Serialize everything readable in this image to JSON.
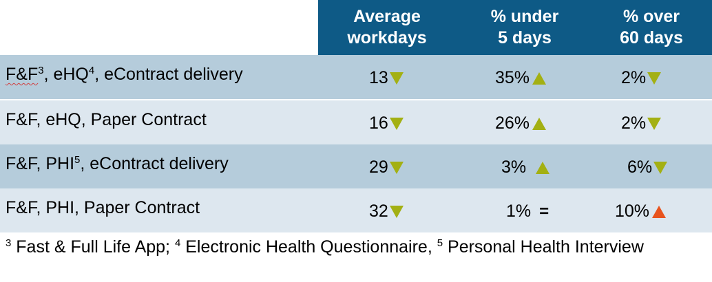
{
  "colors": {
    "header_bg": "#0e5a86",
    "row_dark": "#b5ccdb",
    "row_light": "#dde7ef",
    "down_arrow": "#a3b013",
    "up_arrow_good": "#a3b013",
    "up_arrow_bad": "#e8541e"
  },
  "headers": {
    "avg_line1": "Average",
    "avg_line2": "workdays",
    "under_line1": "% under",
    "under_line2": "5 days",
    "over_line1": "% over",
    "over_line2": "60 days"
  },
  "rows": [
    {
      "label_a": "F&F",
      "sup_a": "3",
      "label_b": ", eHQ",
      "sup_b": "4",
      "label_c": ", eContract delivery",
      "avg": "13",
      "avg_trend": "down-icon",
      "under": "35%",
      "under_trend": "up-icon",
      "over": "2%",
      "over_trend": "down-icon"
    },
    {
      "label_a": "F&F, eHQ, Paper Contract",
      "avg": "16",
      "avg_trend": "down-icon",
      "under": "26%",
      "under_trend": "up-icon",
      "over": "2%",
      "over_trend": "down-icon"
    },
    {
      "label_a": "F&F, PHI",
      "sup_a": "5",
      "label_b": ", eContract delivery",
      "avg": "29",
      "avg_trend": "down-icon",
      "under": "3%",
      "under_trend": "up-icon",
      "over": "6%",
      "over_trend": "down-icon"
    },
    {
      "label_a": "F&F, PHI, Paper Contract",
      "avg": "32",
      "avg_trend": "down-icon",
      "under": "1%",
      "under_trend": "equal-icon",
      "under_equal": "=",
      "over": "10%",
      "over_trend": "up-icon"
    }
  ],
  "footnote": {
    "sup1": "3",
    "t1": " Fast & Full Life App; ",
    "sup2": "4",
    "t2": " Electronic Health Questionnaire, ",
    "sup3": "5",
    "t3": " Personal Health Interview"
  }
}
